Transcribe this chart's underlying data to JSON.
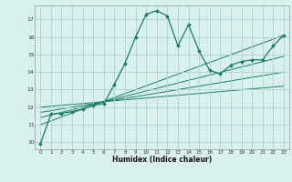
{
  "xlabel": "Humidex (Indice chaleur)",
  "bg_color": "#d8f0ee",
  "grid_color": "#b0d4d0",
  "line_color": "#1a7a6a",
  "xlim": [
    -0.5,
    23.5
  ],
  "ylim": [
    9.6,
    17.8
  ],
  "yticks": [
    10,
    11,
    12,
    13,
    14,
    15,
    16,
    17
  ],
  "xticks": [
    0,
    1,
    2,
    3,
    4,
    5,
    6,
    7,
    8,
    9,
    10,
    11,
    12,
    13,
    14,
    15,
    16,
    17,
    18,
    19,
    20,
    21,
    22,
    23
  ],
  "main_line_x": [
    0,
    1,
    2,
    3,
    4,
    5,
    6,
    7,
    8,
    9,
    10,
    11,
    12,
    13,
    14,
    15,
    16,
    17,
    18,
    19,
    20,
    21,
    22,
    23
  ],
  "main_line_y": [
    9.9,
    11.6,
    11.65,
    11.75,
    11.9,
    12.1,
    12.2,
    13.3,
    14.5,
    16.0,
    17.3,
    17.5,
    17.2,
    15.5,
    16.7,
    15.2,
    14.1,
    13.9,
    14.4,
    14.6,
    14.7,
    14.7,
    15.5,
    16.1
  ],
  "reg_lines": [
    {
      "x": [
        0,
        23
      ],
      "y": [
        12.0,
        13.2
      ]
    },
    {
      "x": [
        0,
        23
      ],
      "y": [
        11.7,
        14.0
      ]
    },
    {
      "x": [
        0,
        23
      ],
      "y": [
        11.4,
        14.9
      ]
    },
    {
      "x": [
        0,
        23
      ],
      "y": [
        11.0,
        16.1
      ]
    }
  ]
}
